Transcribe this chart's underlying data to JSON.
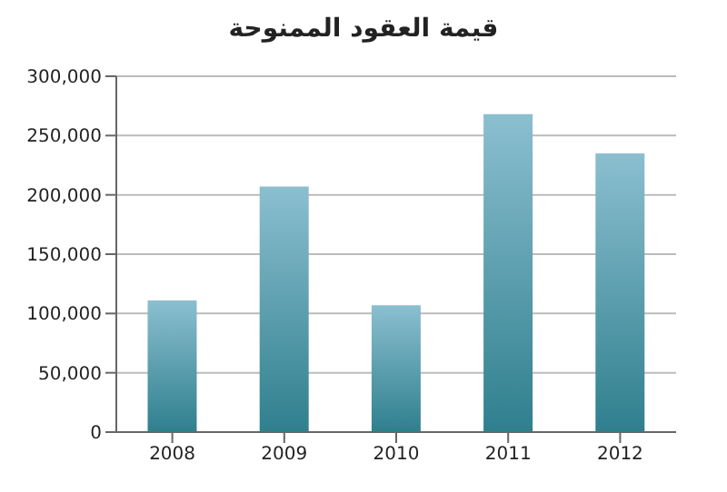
{
  "chart_data": {
    "type": "bar",
    "title": "قيمة العقود الممنوحة",
    "categories": [
      "2008",
      "2009",
      "2010",
      "2011",
      "2012"
    ],
    "values": [
      111000,
      207000,
      107000,
      268000,
      235000
    ],
    "color": "#2f7f8e",
    "ylim": [
      0,
      300000
    ],
    "yticks": [
      {
        "value": 0,
        "label": "0"
      },
      {
        "value": 50000,
        "label": "50,000"
      },
      {
        "value": 100000,
        "label": "100,000"
      },
      {
        "value": 150000,
        "label": "150,000"
      },
      {
        "value": 200000,
        "label": "200,000"
      },
      {
        "value": 250000,
        "label": "250,000"
      },
      {
        "value": 300000,
        "label": "300,000"
      }
    ],
    "grid": "y",
    "legend": false
  }
}
